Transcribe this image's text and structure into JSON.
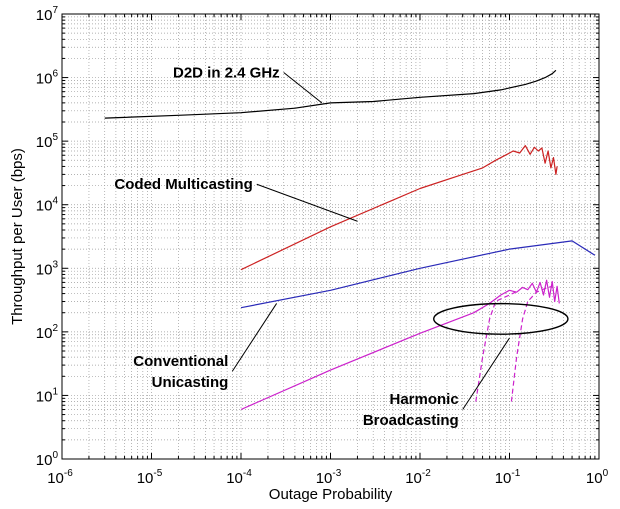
{
  "chart_data": {
    "type": "line",
    "title": "",
    "xlabel": "Outage Probability",
    "ylabel": "Throughput per User (bps)",
    "x_scale": "log",
    "y_scale": "log",
    "xlim": [
      1e-06,
      1
    ],
    "ylim": [
      1,
      10000000.0
    ],
    "grid": true,
    "x_ticks": [
      {
        "base": "10",
        "exp": "-6",
        "value": 1e-06
      },
      {
        "base": "10",
        "exp": "-5",
        "value": 1e-05
      },
      {
        "base": "10",
        "exp": "-4",
        "value": 0.0001
      },
      {
        "base": "10",
        "exp": "-3",
        "value": 0.001
      },
      {
        "base": "10",
        "exp": "-2",
        "value": 0.01
      },
      {
        "base": "10",
        "exp": "-1",
        "value": 0.1
      },
      {
        "base": "10",
        "exp": "0",
        "value": 1
      }
    ],
    "y_ticks": [
      {
        "base": "10",
        "exp": "0",
        "value": 1
      },
      {
        "base": "10",
        "exp": "1",
        "value": 10
      },
      {
        "base": "10",
        "exp": "2",
        "value": 100
      },
      {
        "base": "10",
        "exp": "3",
        "value": 1000
      },
      {
        "base": "10",
        "exp": "4",
        "value": 10000
      },
      {
        "base": "10",
        "exp": "5",
        "value": 100000
      },
      {
        "base": "10",
        "exp": "6",
        "value": 1000000
      },
      {
        "base": "10",
        "exp": "7",
        "value": 10000000
      }
    ],
    "series": [
      {
        "color": "#000000",
        "dash": "solid",
        "points": [
          [
            3e-06,
            230000
          ],
          [
            2e-05,
            255000
          ],
          [
            0.0001,
            280000
          ],
          [
            0.0004,
            330000
          ],
          [
            0.001,
            400000
          ],
          [
            0.003,
            420000
          ],
          [
            0.01,
            490000
          ],
          [
            0.04,
            560000
          ],
          [
            0.08,
            640000
          ],
          [
            0.15,
            780000
          ],
          [
            0.2,
            880000
          ],
          [
            0.25,
            1000000
          ],
          [
            0.3,
            1150000
          ],
          [
            0.33,
            1300000
          ]
        ]
      },
      {
        "color": "#cc2222",
        "dash": "solid",
        "points": [
          [
            0.0001,
            950
          ],
          [
            0.001,
            4500
          ],
          [
            0.01,
            18000
          ],
          [
            0.03,
            30000
          ],
          [
            0.05,
            38000
          ],
          [
            0.07,
            50000
          ],
          [
            0.09,
            60000
          ],
          [
            0.11,
            70000
          ],
          [
            0.13,
            65000
          ],
          [
            0.15,
            85000
          ],
          [
            0.17,
            62000
          ],
          [
            0.19,
            80000
          ],
          [
            0.21,
            70000
          ],
          [
            0.23,
            78000
          ],
          [
            0.25,
            45000
          ],
          [
            0.27,
            70000
          ],
          [
            0.29,
            38000
          ],
          [
            0.31,
            55000
          ],
          [
            0.33,
            30000
          ],
          [
            0.34,
            40000
          ]
        ]
      },
      {
        "color": "#2a2ab8",
        "dash": "solid",
        "points": [
          [
            0.0001,
            240
          ],
          [
            0.001,
            450
          ],
          [
            0.01,
            1000
          ],
          [
            0.1,
            2000
          ],
          [
            0.5,
            2700
          ],
          [
            0.9,
            1600
          ]
        ]
      },
      {
        "color": "#cc22cc",
        "dash": "solid",
        "points": [
          [
            0.0001,
            6
          ],
          [
            0.001,
            25
          ],
          [
            0.01,
            95
          ],
          [
            0.04,
            200
          ],
          [
            0.06,
            280
          ],
          [
            0.08,
            380
          ],
          [
            0.1,
            450
          ],
          [
            0.12,
            420
          ],
          [
            0.14,
            500
          ],
          [
            0.16,
            460
          ],
          [
            0.18,
            580
          ],
          [
            0.2,
            420
          ],
          [
            0.22,
            600
          ],
          [
            0.24,
            380
          ],
          [
            0.26,
            650
          ],
          [
            0.28,
            350
          ],
          [
            0.3,
            620
          ],
          [
            0.32,
            300
          ],
          [
            0.34,
            520
          ],
          [
            0.36,
            280
          ]
        ]
      },
      {
        "color": "#cc22cc",
        "dash": "dashed",
        "points": [
          [
            0.042,
            8
          ],
          [
            0.05,
            40
          ],
          [
            0.06,
            160
          ],
          [
            0.07,
            300
          ],
          [
            0.08,
            330
          ],
          [
            0.1,
            380
          ],
          [
            0.12,
            430
          ]
        ]
      },
      {
        "color": "#cc22cc",
        "dash": "dashed",
        "points": [
          [
            0.105,
            8
          ],
          [
            0.12,
            40
          ],
          [
            0.14,
            160
          ],
          [
            0.16,
            300
          ],
          [
            0.2,
            420
          ],
          [
            0.25,
            480
          ],
          [
            0.3,
            520
          ]
        ]
      }
    ],
    "annotations": [
      {
        "text": "D2D in 2.4 GHz",
        "lines": [
          "D2D in 2.4 GHz"
        ],
        "point": [
          0.0008,
          400000
        ],
        "label_anchor": [
          0.0003,
          1200000
        ]
      },
      {
        "text": "Coded Multicasting",
        "lines": [
          "Coded Multicasting"
        ],
        "point": [
          0.002,
          5500
        ],
        "label_anchor": [
          0.00015,
          21000
        ]
      },
      {
        "text": "Conventional Unicasting",
        "lines": [
          "Conventional",
          "Unicasting"
        ],
        "point": [
          0.00025,
          280
        ],
        "label_anchor": [
          8e-05,
          24
        ]
      },
      {
        "text": "Harmonic Broadcasting",
        "lines": [
          "Harmonic",
          "Broadcasting"
        ],
        "point": [
          0.1,
          80
        ],
        "label_anchor": [
          0.03,
          6
        ]
      }
    ],
    "ellipse": {
      "center": [
        0.08,
        160
      ],
      "rx_decades": 0.75,
      "ry_decades": 0.24
    }
  }
}
